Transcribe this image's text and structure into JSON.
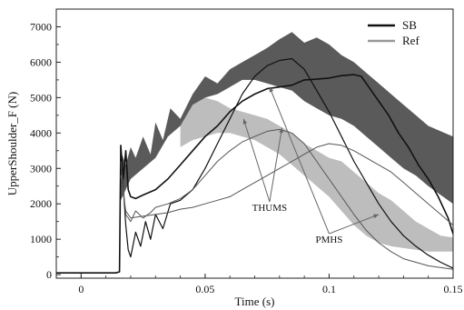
{
  "chart_data": {
    "type": "line",
    "title": "",
    "xlabel": "Time (s)",
    "ylabel": "UpperShoulder_F (N)",
    "xlim": [
      -0.01,
      0.15
    ],
    "ylim": [
      -100,
      7500
    ],
    "xticks": [
      0,
      0.05,
      0.1,
      0.15
    ],
    "xtick_labels": [
      "0",
      "0.05",
      "0.1",
      "0.15"
    ],
    "yticks": [
      0,
      1000,
      2000,
      3000,
      4000,
      5000,
      6000,
      7000
    ],
    "ytick_labels": [
      "0",
      "1000",
      "2000",
      "3000",
      "4000",
      "5000",
      "6000",
      "7000"
    ],
    "grid": false,
    "legend_position": "top-right",
    "legend": [
      {
        "name": "SB",
        "color": "#111111"
      },
      {
        "name": "Ref",
        "color": "#999999"
      }
    ],
    "bands": [
      {
        "name": "SB",
        "color": "#5a5a5a",
        "upper": [
          [
            0.016,
            3500
          ],
          [
            0.018,
            3100
          ],
          [
            0.02,
            3600
          ],
          [
            0.022,
            3300
          ],
          [
            0.025,
            3900
          ],
          [
            0.028,
            3400
          ],
          [
            0.03,
            4300
          ],
          [
            0.033,
            3800
          ],
          [
            0.036,
            4700
          ],
          [
            0.04,
            4400
          ],
          [
            0.045,
            5100
          ],
          [
            0.05,
            5600
          ],
          [
            0.055,
            5400
          ],
          [
            0.06,
            5800
          ],
          [
            0.065,
            6000
          ],
          [
            0.07,
            6200
          ],
          [
            0.075,
            6400
          ],
          [
            0.08,
            6650
          ],
          [
            0.085,
            6850
          ],
          [
            0.09,
            6550
          ],
          [
            0.095,
            6700
          ],
          [
            0.1,
            6500
          ],
          [
            0.105,
            6200
          ],
          [
            0.11,
            6000
          ],
          [
            0.115,
            5700
          ],
          [
            0.12,
            5400
          ],
          [
            0.125,
            5100
          ],
          [
            0.13,
            4800
          ],
          [
            0.135,
            4500
          ],
          [
            0.14,
            4200
          ],
          [
            0.15,
            3900
          ]
        ],
        "lower": [
          [
            0.016,
            2100
          ],
          [
            0.02,
            2700
          ],
          [
            0.025,
            3000
          ],
          [
            0.03,
            3300
          ],
          [
            0.035,
            3900
          ],
          [
            0.04,
            4200
          ],
          [
            0.045,
            4500
          ],
          [
            0.05,
            5000
          ],
          [
            0.055,
            5100
          ],
          [
            0.06,
            5300
          ],
          [
            0.065,
            5500
          ],
          [
            0.07,
            5500
          ],
          [
            0.075,
            5400
          ],
          [
            0.08,
            5300
          ],
          [
            0.085,
            5200
          ],
          [
            0.09,
            4900
          ],
          [
            0.095,
            4700
          ],
          [
            0.1,
            4500
          ],
          [
            0.105,
            4400
          ],
          [
            0.11,
            4200
          ],
          [
            0.115,
            3900
          ],
          [
            0.12,
            3600
          ],
          [
            0.125,
            3300
          ],
          [
            0.13,
            3000
          ],
          [
            0.135,
            2800
          ],
          [
            0.14,
            2500
          ],
          [
            0.15,
            2000
          ]
        ]
      },
      {
        "name": "Ref",
        "color": "#bdbdbd",
        "upper": [
          [
            0.04,
            4200
          ],
          [
            0.045,
            4800
          ],
          [
            0.05,
            5000
          ],
          [
            0.055,
            4900
          ],
          [
            0.06,
            4700
          ],
          [
            0.065,
            4600
          ],
          [
            0.07,
            4500
          ],
          [
            0.075,
            4400
          ],
          [
            0.08,
            4200
          ],
          [
            0.085,
            4000
          ],
          [
            0.09,
            3700
          ],
          [
            0.095,
            3500
          ],
          [
            0.1,
            3300
          ],
          [
            0.105,
            3200
          ],
          [
            0.11,
            2900
          ],
          [
            0.115,
            2600
          ],
          [
            0.12,
            2300
          ],
          [
            0.125,
            2100
          ],
          [
            0.13,
            1800
          ],
          [
            0.135,
            1500
          ],
          [
            0.14,
            1300
          ],
          [
            0.145,
            1100
          ],
          [
            0.15,
            1050
          ]
        ],
        "lower": [
          [
            0.04,
            3600
          ],
          [
            0.045,
            3800
          ],
          [
            0.05,
            3900
          ],
          [
            0.055,
            4000
          ],
          [
            0.06,
            4000
          ],
          [
            0.065,
            3900
          ],
          [
            0.07,
            3800
          ],
          [
            0.075,
            3600
          ],
          [
            0.08,
            3400
          ],
          [
            0.085,
            3100
          ],
          [
            0.09,
            2800
          ],
          [
            0.095,
            2500
          ],
          [
            0.1,
            2200
          ],
          [
            0.105,
            1800
          ],
          [
            0.11,
            1400
          ],
          [
            0.115,
            1100
          ],
          [
            0.12,
            900
          ],
          [
            0.125,
            800
          ],
          [
            0.13,
            750
          ],
          [
            0.135,
            700
          ],
          [
            0.14,
            650
          ],
          [
            0.15,
            650
          ]
        ]
      }
    ],
    "series": [
      {
        "name": "SB",
        "color": "#111111",
        "width": 1.6,
        "points": [
          [
            -0.01,
            50
          ],
          [
            0.014,
            50
          ],
          [
            0.0155,
            80
          ],
          [
            0.016,
            3650
          ],
          [
            0.017,
            2700
          ],
          [
            0.018,
            3500
          ],
          [
            0.019,
            2400
          ],
          [
            0.02,
            2200
          ],
          [
            0.022,
            2150
          ],
          [
            0.025,
            2250
          ],
          [
            0.03,
            2400
          ],
          [
            0.035,
            2700
          ],
          [
            0.04,
            3100
          ],
          [
            0.045,
            3500
          ],
          [
            0.05,
            3900
          ],
          [
            0.055,
            4200
          ],
          [
            0.06,
            4600
          ],
          [
            0.065,
            4900
          ],
          [
            0.07,
            5100
          ],
          [
            0.075,
            5250
          ],
          [
            0.08,
            5300
          ],
          [
            0.085,
            5350
          ],
          [
            0.09,
            5500
          ],
          [
            0.095,
            5520
          ],
          [
            0.1,
            5550
          ],
          [
            0.105,
            5620
          ],
          [
            0.11,
            5650
          ],
          [
            0.113,
            5600
          ],
          [
            0.116,
            5300
          ],
          [
            0.12,
            4900
          ],
          [
            0.124,
            4500
          ],
          [
            0.128,
            4000
          ],
          [
            0.132,
            3600
          ],
          [
            0.136,
            3100
          ],
          [
            0.14,
            2700
          ],
          [
            0.144,
            2200
          ],
          [
            0.148,
            1600
          ],
          [
            0.15,
            1150
          ]
        ]
      },
      {
        "name": "THUMS SB",
        "color": "#111111",
        "width": 1.2,
        "points": [
          [
            0.016,
            3650
          ],
          [
            0.017,
            2500
          ],
          [
            0.018,
            1400
          ],
          [
            0.019,
            700
          ],
          [
            0.02,
            500
          ],
          [
            0.022,
            1200
          ],
          [
            0.024,
            800
          ],
          [
            0.026,
            1500
          ],
          [
            0.028,
            1000
          ],
          [
            0.03,
            1700
          ],
          [
            0.033,
            1300
          ],
          [
            0.036,
            2000
          ],
          [
            0.04,
            2100
          ],
          [
            0.045,
            2400
          ],
          [
            0.05,
            3000
          ],
          [
            0.055,
            3700
          ],
          [
            0.06,
            4400
          ],
          [
            0.065,
            5100
          ],
          [
            0.07,
            5600
          ],
          [
            0.075,
            5900
          ],
          [
            0.08,
            6050
          ],
          [
            0.085,
            6100
          ],
          [
            0.09,
            5800
          ],
          [
            0.095,
            5200
          ],
          [
            0.1,
            4600
          ],
          [
            0.105,
            3900
          ],
          [
            0.11,
            3200
          ],
          [
            0.115,
            2600
          ],
          [
            0.12,
            2000
          ],
          [
            0.125,
            1500
          ],
          [
            0.13,
            1100
          ],
          [
            0.135,
            800
          ],
          [
            0.14,
            550
          ],
          [
            0.145,
            350
          ],
          [
            0.15,
            180
          ]
        ]
      },
      {
        "name": "THUMS Ref",
        "color": "#555555",
        "width": 1.0,
        "points": [
          [
            0.016,
            3200
          ],
          [
            0.018,
            1700
          ],
          [
            0.02,
            1500
          ],
          [
            0.022,
            1800
          ],
          [
            0.025,
            1600
          ],
          [
            0.028,
            1750
          ],
          [
            0.03,
            1900
          ],
          [
            0.035,
            2000
          ],
          [
            0.04,
            2150
          ],
          [
            0.045,
            2400
          ],
          [
            0.05,
            2800
          ],
          [
            0.055,
            3200
          ],
          [
            0.06,
            3500
          ],
          [
            0.065,
            3750
          ],
          [
            0.07,
            3900
          ],
          [
            0.075,
            4050
          ],
          [
            0.08,
            4100
          ],
          [
            0.085,
            4000
          ],
          [
            0.09,
            3700
          ],
          [
            0.095,
            3200
          ],
          [
            0.1,
            2700
          ],
          [
            0.105,
            2200
          ],
          [
            0.11,
            1700
          ],
          [
            0.115,
            1250
          ],
          [
            0.12,
            900
          ],
          [
            0.125,
            650
          ],
          [
            0.13,
            450
          ],
          [
            0.135,
            350
          ],
          [
            0.14,
            250
          ],
          [
            0.15,
            150
          ]
        ]
      },
      {
        "name": "PMHS Ref",
        "color": "#555555",
        "width": 1.0,
        "points": [
          [
            0.016,
            2800
          ],
          [
            0.018,
            1800
          ],
          [
            0.02,
            1600
          ],
          [
            0.025,
            1650
          ],
          [
            0.03,
            1700
          ],
          [
            0.035,
            1750
          ],
          [
            0.04,
            1850
          ],
          [
            0.045,
            1900
          ],
          [
            0.05,
            2000
          ],
          [
            0.055,
            2100
          ],
          [
            0.06,
            2200
          ],
          [
            0.065,
            2400
          ],
          [
            0.07,
            2600
          ],
          [
            0.075,
            2800
          ],
          [
            0.08,
            3000
          ],
          [
            0.085,
            3200
          ],
          [
            0.09,
            3400
          ],
          [
            0.095,
            3600
          ],
          [
            0.1,
            3700
          ],
          [
            0.105,
            3650
          ],
          [
            0.11,
            3500
          ],
          [
            0.115,
            3300
          ],
          [
            0.12,
            3100
          ],
          [
            0.125,
            2900
          ],
          [
            0.13,
            2600
          ],
          [
            0.135,
            2300
          ],
          [
            0.14,
            2000
          ],
          [
            0.145,
            1700
          ],
          [
            0.15,
            1400
          ]
        ]
      }
    ],
    "annotations": [
      {
        "text": "THUMS",
        "x": 0.076,
        "y": 1800,
        "targets": [
          [
            0.0655,
            4400
          ],
          [
            0.081,
            4150
          ]
        ]
      },
      {
        "text": "PMHS",
        "x": 0.1,
        "y": 900,
        "targets": [
          [
            0.076,
            5300
          ],
          [
            0.12,
            1700
          ]
        ]
      }
    ]
  }
}
